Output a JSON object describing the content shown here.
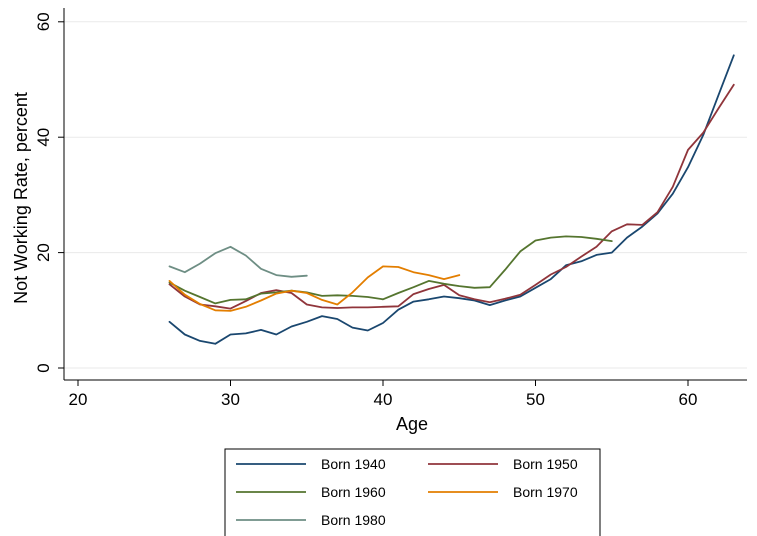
{
  "chart_data": {
    "type": "line",
    "title": "",
    "xlabel": "Age",
    "ylabel": "Not Working Rate, percent",
    "xlim": [
      19,
      64
    ],
    "ylim": [
      -2,
      61
    ],
    "xticks": [
      20,
      30,
      40,
      50,
      60
    ],
    "yticks": [
      0,
      20,
      40,
      60
    ],
    "grid": "horizontal",
    "legend_placement": "bottom",
    "series": [
      {
        "name": "Born 1940",
        "color": "#1a476f",
        "points": [
          [
            26,
            8.0
          ],
          [
            27,
            5.8
          ],
          [
            28,
            4.7
          ],
          [
            29,
            4.2
          ],
          [
            30,
            5.8
          ],
          [
            31,
            6.0
          ],
          [
            32,
            6.6
          ],
          [
            33,
            5.8
          ],
          [
            34,
            7.2
          ],
          [
            35,
            8.0
          ],
          [
            36,
            9.0
          ],
          [
            37,
            8.5
          ],
          [
            38,
            7.0
          ],
          [
            39,
            6.5
          ],
          [
            40,
            7.8
          ],
          [
            41,
            10.1
          ],
          [
            42,
            11.5
          ],
          [
            43,
            11.9
          ],
          [
            44,
            12.4
          ],
          [
            45,
            12.1
          ],
          [
            46,
            11.7
          ],
          [
            47,
            10.9
          ],
          [
            48,
            11.7
          ],
          [
            49,
            12.4
          ],
          [
            50,
            13.9
          ],
          [
            51,
            15.4
          ],
          [
            52,
            17.8
          ],
          [
            53,
            18.5
          ],
          [
            54,
            19.6
          ],
          [
            55,
            20.0
          ],
          [
            56,
            22.6
          ],
          [
            57,
            24.5
          ],
          [
            58,
            26.8
          ],
          [
            59,
            30.2
          ],
          [
            60,
            34.8
          ],
          [
            61,
            40.4
          ],
          [
            62,
            47.3
          ],
          [
            63,
            54.2
          ]
        ]
      },
      {
        "name": "Born 1950",
        "color": "#90353b",
        "points": [
          [
            26,
            14.5
          ],
          [
            27,
            12.4
          ],
          [
            28,
            11.0
          ],
          [
            29,
            10.7
          ],
          [
            30,
            10.3
          ],
          [
            31,
            11.6
          ],
          [
            32,
            13.0
          ],
          [
            33,
            13.5
          ],
          [
            34,
            13.0
          ],
          [
            35,
            11.0
          ],
          [
            36,
            10.5
          ],
          [
            37,
            10.4
          ],
          [
            38,
            10.5
          ],
          [
            39,
            10.5
          ],
          [
            40,
            10.6
          ],
          [
            41,
            10.7
          ],
          [
            42,
            12.8
          ],
          [
            43,
            13.7
          ],
          [
            44,
            14.4
          ],
          [
            45,
            12.6
          ],
          [
            46,
            11.9
          ],
          [
            47,
            11.4
          ],
          [
            48,
            12.0
          ],
          [
            49,
            12.7
          ],
          [
            50,
            14.4
          ],
          [
            51,
            16.2
          ],
          [
            52,
            17.5
          ],
          [
            53,
            19.3
          ],
          [
            54,
            21.0
          ],
          [
            55,
            23.7
          ],
          [
            56,
            24.9
          ],
          [
            57,
            24.8
          ],
          [
            58,
            27.0
          ],
          [
            59,
            31.4
          ],
          [
            60,
            37.8
          ],
          [
            61,
            40.8
          ],
          [
            62,
            45.0
          ],
          [
            63,
            49.1
          ]
        ]
      },
      {
        "name": "Born 1960",
        "color": "#55752f",
        "points": [
          [
            26,
            14.8
          ],
          [
            27,
            13.4
          ],
          [
            28,
            12.3
          ],
          [
            29,
            11.2
          ],
          [
            30,
            11.8
          ],
          [
            31,
            11.9
          ],
          [
            32,
            12.9
          ],
          [
            33,
            13.1
          ],
          [
            34,
            13.4
          ],
          [
            35,
            13.1
          ],
          [
            36,
            12.5
          ],
          [
            37,
            12.6
          ],
          [
            38,
            12.5
          ],
          [
            39,
            12.3
          ],
          [
            40,
            11.9
          ],
          [
            41,
            13.0
          ],
          [
            42,
            14.0
          ],
          [
            43,
            15.1
          ],
          [
            44,
            14.6
          ],
          [
            45,
            14.2
          ],
          [
            46,
            13.9
          ],
          [
            47,
            14.0
          ],
          [
            48,
            17.0
          ],
          [
            49,
            20.2
          ],
          [
            50,
            22.1
          ],
          [
            51,
            22.6
          ],
          [
            52,
            22.8
          ],
          [
            53,
            22.7
          ],
          [
            54,
            22.4
          ],
          [
            55,
            22.0
          ]
        ]
      },
      {
        "name": "Born 1970",
        "color": "#e37e00",
        "points": [
          [
            26,
            15.1
          ],
          [
            27,
            12.7
          ],
          [
            28,
            11.1
          ],
          [
            29,
            10.0
          ],
          [
            30,
            9.9
          ],
          [
            31,
            10.6
          ],
          [
            32,
            11.7
          ],
          [
            33,
            12.9
          ],
          [
            34,
            13.4
          ],
          [
            35,
            13.0
          ],
          [
            36,
            11.8
          ],
          [
            37,
            11.0
          ],
          [
            38,
            13.1
          ],
          [
            39,
            15.7
          ],
          [
            40,
            17.6
          ],
          [
            41,
            17.5
          ],
          [
            42,
            16.6
          ],
          [
            43,
            16.1
          ],
          [
            44,
            15.4
          ],
          [
            45,
            16.1
          ]
        ]
      },
      {
        "name": "Born 1980",
        "color": "#6e8e84",
        "points": [
          [
            26,
            17.6
          ],
          [
            27,
            16.6
          ],
          [
            28,
            18.1
          ],
          [
            29,
            19.9
          ],
          [
            30,
            21.0
          ],
          [
            31,
            19.5
          ],
          [
            32,
            17.2
          ],
          [
            33,
            16.1
          ],
          [
            34,
            15.8
          ],
          [
            35,
            16.0
          ]
        ]
      }
    ]
  }
}
